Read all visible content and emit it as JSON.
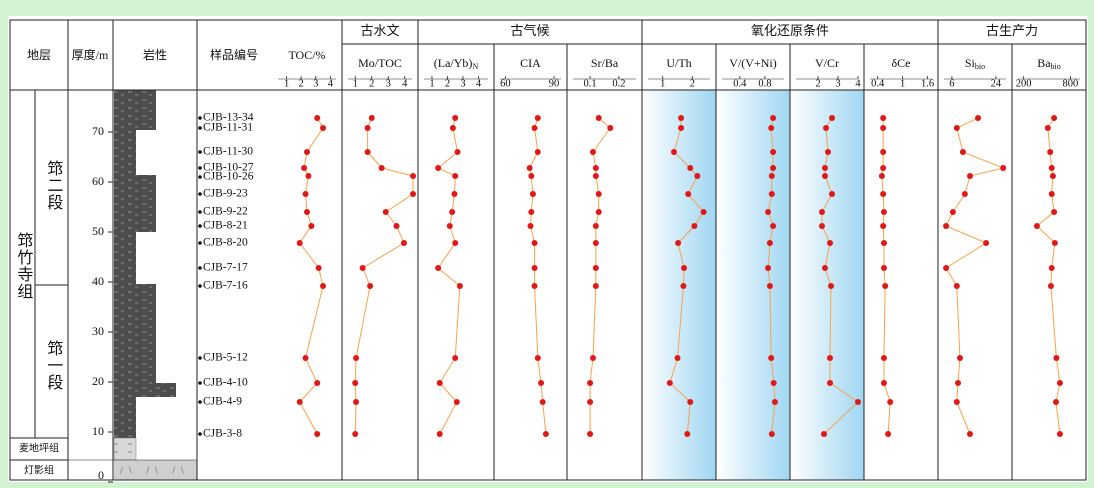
{
  "chart_data": {
    "type": "depth-profile",
    "header": {
      "strata": "地层",
      "thickness": "厚度/m",
      "lithology": "岩性",
      "samples": "样品编号"
    },
    "formations": {
      "main": {
        "name": "筇竹寺组",
        "members": [
          "筇二段",
          "筇一段"
        ]
      },
      "lower": [
        "麦地坪组",
        "灯影组"
      ]
    },
    "ylim": [
      0,
      78.4
    ],
    "yticks": [
      0,
      10,
      20,
      30,
      40,
      50,
      60,
      70
    ],
    "line_color": "#f5a34e",
    "marker_color": "#e01818",
    "shade_color": "#9fd6f2",
    "samples": {
      "names": [
        "CJB-13-34",
        "CJB-11-31",
        "CJB-11-30",
        "CJB-10-27",
        "CJB-10-26",
        "CJB-9-23",
        "CJB-9-22",
        "CJB-8-21",
        "CJB-8-20",
        "CJB-7-17",
        "CJB-7-16",
        "CJB-5-12",
        "CJB-4-10",
        "CJB-4-9",
        "CJB-3-8"
      ],
      "depth": [
        72.8,
        70.8,
        66,
        62.8,
        61.2,
        57.6,
        54,
        51.2,
        47.8,
        42.8,
        39.2,
        24.8,
        19.8,
        16,
        9.6
      ]
    },
    "panels": [
      {
        "label": "TOC/%",
        "xlim": [
          0,
          4.8
        ],
        "xticks": [
          1,
          2,
          3,
          4
        ],
        "values": [
          3.1,
          3.5,
          2.4,
          2.2,
          2.5,
          2.3,
          2.4,
          2.7,
          1.9,
          3.2,
          3.5,
          2.3,
          3.1,
          1.9,
          3.1
        ]
      },
      {
        "name": "古水文",
        "panels": [
          {
            "label": "Mo/TOC",
            "xlim": [
              0.2,
              4.8
            ],
            "xticks": [
              1,
              2,
              3,
              4
            ],
            "values": [
              2.0,
              1.75,
              1.75,
              2.6,
              4.5,
              4.5,
              2.85,
              3.5,
              3.95,
              1.45,
              1.9,
              1.05,
              1.0,
              1.05,
              1.0
            ]
          }
        ]
      },
      {
        "name": "古气候",
        "panels": [
          {
            "label": "(La/Yb)",
            "subscript": "N",
            "xlim": [
              0.1,
              5
            ],
            "xticks": [
              1,
              2,
              3,
              4
            ],
            "values": [
              2.5,
              2.35,
              2.65,
              1.4,
              2.5,
              2.45,
              2.3,
              2.15,
              2.5,
              1.4,
              2.8,
              2.5,
              1.5,
              2.6,
              1.5
            ]
          },
          {
            "label": "CIA",
            "xlim": [
              53,
              98
            ],
            "xticks": [
              60,
              90
            ],
            "values": [
              80,
              78,
              80,
              75,
              76,
              77,
              76,
              75.5,
              78,
              78,
              78,
              80,
              82,
              83,
              85
            ]
          },
          {
            "label": "Sr/Ba",
            "xlim": [
              0.02,
              0.28
            ],
            "xticks": [
              0.1,
              0.2
            ],
            "values": [
              0.13,
              0.17,
              0.11,
              0.12,
              0.12,
              0.13,
              0.13,
              0.12,
              0.12,
              0.12,
              0.12,
              0.11,
              0.1,
              0.1,
              0.1
            ]
          }
        ]
      },
      {
        "name": "氧化还原条件",
        "panels": [
          {
            "label": "U/Th",
            "xlim": [
              0.3,
              2.8
            ],
            "xticks": [
              1,
              2
            ],
            "shaded": true,
            "values": [
              1.62,
              1.62,
              1.38,
              1.93,
              2.17,
              1.86,
              2.38,
              2.07,
              1.52,
              1.72,
              1.7,
              1.5,
              1.24,
              1.93,
              1.83
            ]
          },
          {
            "label": "V/(V+Ni)",
            "xlim": [
              0.02,
              1.2
            ],
            "xticks": [
              0.4,
              0.8
            ],
            "shaded": true,
            "values": [
              0.93,
              0.9,
              0.93,
              0.93,
              0.91,
              0.91,
              0.85,
              0.93,
              0.88,
              0.85,
              0.88,
              0.9,
              0.94,
              0.96,
              0.91
            ]
          },
          {
            "label": "V/Cr",
            "xlim": [
              0.6,
              4.3
            ],
            "xticks": [
              2,
              3,
              4
            ],
            "shaded": true,
            "values": [
              2.7,
              2.4,
              2.5,
              2.35,
              2.35,
              2.7,
              2.2,
              2.2,
              2.6,
              2.35,
              2.65,
              2.6,
              2.6,
              4.0,
              2.3
            ]
          },
          {
            "label": "δCe",
            "xlim": [
              0.07,
              1.85
            ],
            "xticks": [
              0.4,
              1,
              1.6
            ],
            "values": [
              0.53,
              0.53,
              0.53,
              0.53,
              0.5,
              0.53,
              0.55,
              0.53,
              0.55,
              0.55,
              0.58,
              0.55,
              0.55,
              0.7,
              0.65
            ]
          }
        ]
      },
      {
        "name": "古生产力",
        "panels": [
          {
            "label": "Si",
            "subscript": "bio",
            "xlim": [
              0.3,
              30.6
            ],
            "xticks": [
              6,
              24
            ],
            "values": [
              16.7,
              8,
              10.5,
              27,
              13.4,
              11.3,
              6.4,
              3.6,
              20,
              3.6,
              8,
              9.3,
              8.5,
              8,
              13.4
            ]
          },
          {
            "label": "Ba",
            "subscript": "bio",
            "xlim": [
              50,
              1000
            ],
            "xticks": [
              200,
              800
            ],
            "values": [
              590,
              510,
              540,
              560,
              575,
              560,
              590,
              370,
              600,
              560,
              550,
              620,
              665,
              615,
              665
            ]
          }
        ]
      }
    ]
  }
}
